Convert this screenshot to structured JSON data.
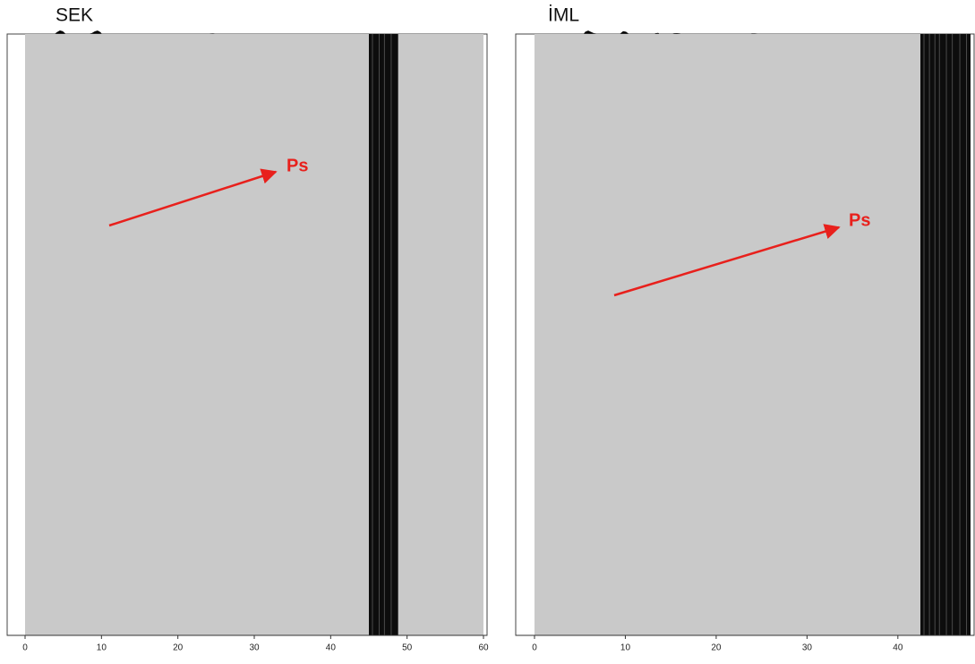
{
  "chart_data": [
    {
      "type": "wiggle",
      "title": "SEK",
      "annotation": "Ps",
      "xlim": [
        0,
        60
      ],
      "xticks": [
        0,
        10,
        20,
        30,
        40,
        50,
        60
      ]
    },
    {
      "type": "wiggle",
      "title": "İML",
      "annotation": "Ps",
      "xlim": [
        0,
        48
      ],
      "xticks": [
        0,
        10,
        20,
        30,
        40
      ]
    }
  ]
}
